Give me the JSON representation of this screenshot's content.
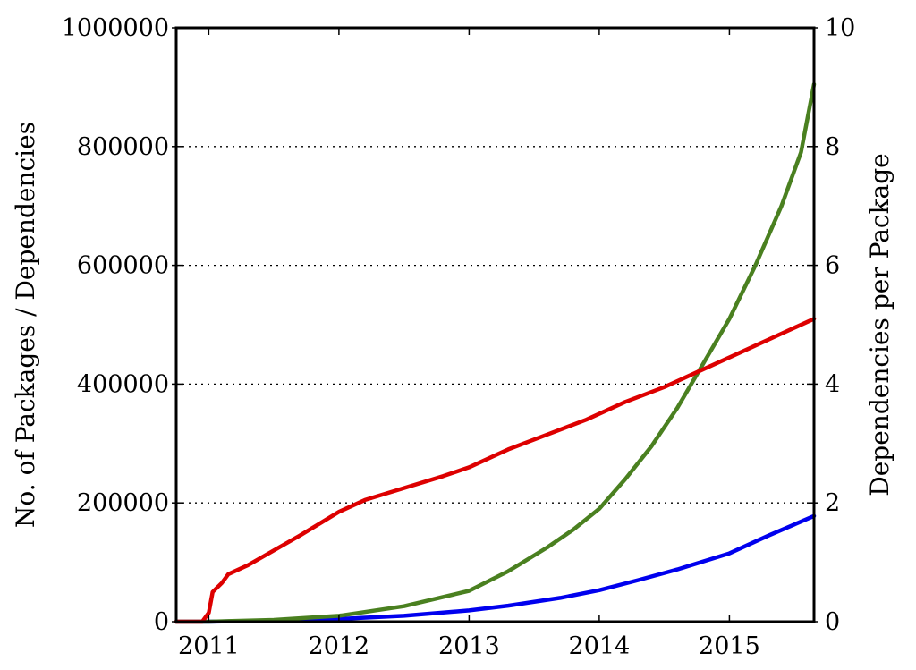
{
  "chart_data": {
    "type": "line",
    "title": "",
    "xlabel": "",
    "ylabel": "No. of Packages / Dependencies",
    "y2label": "Dependencies per Package",
    "xlim": [
      2010.75,
      2015.65
    ],
    "ylim": [
      0,
      1000000
    ],
    "y2lim": [
      0,
      10
    ],
    "grid": "horizontal dotted",
    "x_ticks": [
      2011,
      2012,
      2013,
      2014,
      2015
    ],
    "x_tick_labels": [
      "2011",
      "2012",
      "2013",
      "2014",
      "2015"
    ],
    "y_ticks": [
      0,
      200000,
      400000,
      600000,
      800000,
      1000000
    ],
    "y_tick_labels": [
      "0",
      "200000",
      "400000",
      "600000",
      "800000",
      "1000000"
    ],
    "y2_ticks": [
      0,
      2,
      4,
      6,
      8,
      10
    ],
    "y2_tick_labels": [
      "0",
      "2",
      "4",
      "6",
      "8",
      "10"
    ],
    "series": [
      {
        "axis": "left",
        "color": "#0000ee",
        "points": [
          [
            2010.75,
            0
          ],
          [
            2011.0,
            0
          ],
          [
            2011.5,
            2000
          ],
          [
            2012.0,
            4500
          ],
          [
            2012.5,
            10000
          ],
          [
            2013.0,
            19000
          ],
          [
            2013.3,
            27000
          ],
          [
            2013.7,
            40000
          ],
          [
            2014.0,
            53000
          ],
          [
            2014.3,
            70000
          ],
          [
            2014.6,
            88000
          ],
          [
            2015.0,
            115000
          ],
          [
            2015.3,
            145000
          ],
          [
            2015.65,
            178000
          ]
        ]
      },
      {
        "axis": "left",
        "color": "#4a8020",
        "points": [
          [
            2010.75,
            0
          ],
          [
            2011.0,
            0
          ],
          [
            2011.5,
            3000
          ],
          [
            2012.0,
            10000
          ],
          [
            2012.5,
            26000
          ],
          [
            2013.0,
            52000
          ],
          [
            2013.3,
            85000
          ],
          [
            2013.6,
            125000
          ],
          [
            2013.8,
            155000
          ],
          [
            2014.0,
            190000
          ],
          [
            2014.2,
            240000
          ],
          [
            2014.4,
            295000
          ],
          [
            2014.6,
            360000
          ],
          [
            2014.8,
            435000
          ],
          [
            2015.0,
            510000
          ],
          [
            2015.2,
            600000
          ],
          [
            2015.4,
            700000
          ],
          [
            2015.55,
            790000
          ],
          [
            2015.65,
            905000
          ]
        ]
      },
      {
        "axis": "right",
        "color": "#dd0000",
        "points": [
          [
            2010.75,
            0
          ],
          [
            2010.95,
            0
          ],
          [
            2011.0,
            0.15
          ],
          [
            2011.03,
            0.5
          ],
          [
            2011.1,
            0.65
          ],
          [
            2011.15,
            0.8
          ],
          [
            2011.3,
            0.95
          ],
          [
            2011.5,
            1.2
          ],
          [
            2011.7,
            1.45
          ],
          [
            2011.85,
            1.65
          ],
          [
            2012.0,
            1.85
          ],
          [
            2012.2,
            2.05
          ],
          [
            2012.5,
            2.25
          ],
          [
            2012.8,
            2.45
          ],
          [
            2013.0,
            2.6
          ],
          [
            2013.3,
            2.9
          ],
          [
            2013.6,
            3.15
          ],
          [
            2013.9,
            3.4
          ],
          [
            2014.2,
            3.7
          ],
          [
            2014.5,
            3.95
          ],
          [
            2014.8,
            4.25
          ],
          [
            2015.1,
            4.55
          ],
          [
            2015.4,
            4.85
          ],
          [
            2015.65,
            5.1
          ]
        ]
      }
    ]
  }
}
